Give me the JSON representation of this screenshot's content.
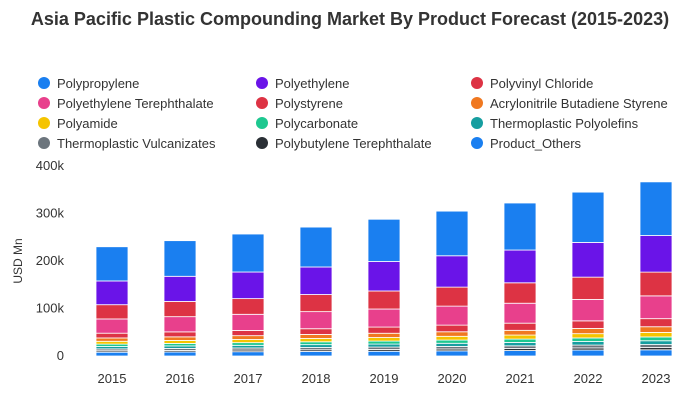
{
  "chart_data": {
    "type": "bar",
    "stacked": true,
    "title": "Asia Pacific Plastic Compounding Market By Product Forecast (2015-2023)",
    "ylabel": "USD Mn",
    "xlabel": "",
    "ylim": [
      0,
      400000
    ],
    "yticks": [
      "0",
      "100k",
      "200k",
      "300k",
      "400k"
    ],
    "grid": false,
    "legend_position": "top",
    "categories": [
      "2015",
      "2016",
      "2017",
      "2018",
      "2019",
      "2020",
      "2021",
      "2022",
      "2023"
    ],
    "series": [
      {
        "name": "Polypropylene",
        "color": "#1a7ff0",
        "values": [
          72000,
          75000,
          80000,
          84000,
          89000,
          94000,
          99000,
          106000,
          113000
        ]
      },
      {
        "name": "Polyethylene",
        "color": "#6a14e8",
        "values": [
          50000,
          53000,
          56000,
          58000,
          62000,
          66000,
          69000,
          73000,
          77000
        ]
      },
      {
        "name": "Polyvinyl Chloride",
        "color": "#dd3344",
        "values": [
          30000,
          32000,
          33000,
          36000,
          38000,
          40000,
          43000,
          47000,
          50000
        ]
      },
      {
        "name": "Polyethylene Terephthalate",
        "color": "#e8408c",
        "values": [
          30000,
          32000,
          34000,
          36000,
          38000,
          40000,
          42000,
          45000,
          48000
        ]
      },
      {
        "name": "Polystyrene",
        "color": "#dd3344",
        "values": [
          10000,
          10500,
          11000,
          12000,
          13000,
          14000,
          15000,
          16000,
          17000
        ]
      },
      {
        "name": "Acrylonitrile Butadiene Styrene",
        "color": "#f07820",
        "values": [
          7000,
          7500,
          8000,
          8500,
          9000,
          9500,
          10000,
          11000,
          12000
        ]
      },
      {
        "name": "Polyamide",
        "color": "#f5c400",
        "values": [
          6000,
          6300,
          6700,
          7000,
          7500,
          8000,
          8500,
          9000,
          9500
        ]
      },
      {
        "name": "Polycarbonate",
        "color": "#1ec890",
        "values": [
          5000,
          5300,
          5600,
          6000,
          6300,
          6700,
          7100,
          7500,
          8000
        ]
      },
      {
        "name": "Thermoplastic Polyolefins",
        "color": "#169ea0",
        "values": [
          5000,
          5300,
          5600,
          6000,
          6300,
          6700,
          7100,
          7500,
          8000
        ]
      },
      {
        "name": "Thermoplastic Vulcanizates",
        "color": "#6c757d",
        "values": [
          4000,
          4200,
          4500,
          4800,
          5000,
          5300,
          5600,
          6000,
          6300
        ]
      },
      {
        "name": "Polybutylene Terephthalate",
        "color": "#2a2f35",
        "values": [
          3000,
          3200,
          3400,
          3600,
          3800,
          4000,
          4300,
          4500,
          4800
        ]
      },
      {
        "name": "Product_Others",
        "color": "#1a7ff0",
        "values": [
          8000,
          8500,
          9000,
          9500,
          10000,
          10800,
          11500,
          12500,
          13000
        ]
      }
    ]
  }
}
